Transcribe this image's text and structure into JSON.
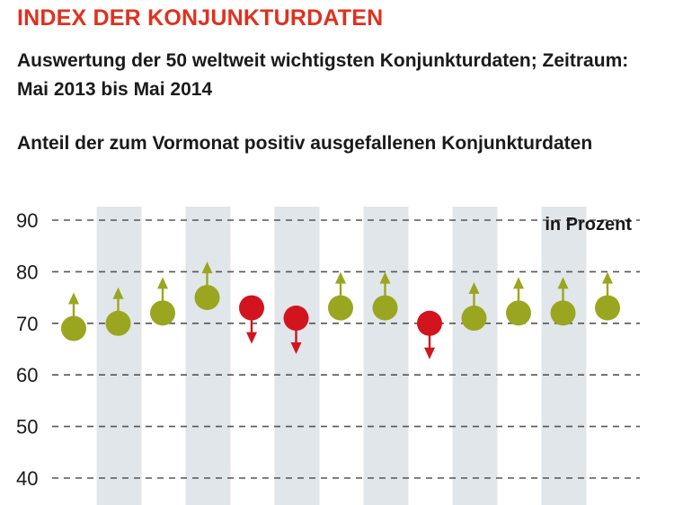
{
  "header": {
    "title": "INDEX DER KONJUNKTURDATEN",
    "subtitle": "Auswertung der 50 weltweit wichtigsten Konjunkturdaten; Zeitraum: Mai 2013 bis Mai 2014"
  },
  "chart_caption": "Anteil der zum Vormonat positiv ausgefallenen Konjunkturdaten",
  "colors": {
    "title": "#e0301e",
    "positive": "#9aa61f",
    "negative": "#d2141e",
    "band": "#e1e6ea",
    "grid": "#555555"
  },
  "chart_data": {
    "type": "scatter",
    "unit_label": "in Prozent",
    "ylim": [
      40,
      90
    ],
    "yticks": [
      90,
      80,
      70,
      60,
      50,
      40
    ],
    "grid": true,
    "alternating_bands": true,
    "values": [
      69,
      70,
      72,
      75,
      73,
      71,
      73,
      73,
      70,
      71,
      72,
      72,
      73
    ],
    "direction": [
      "up",
      "up",
      "up",
      "up",
      "down",
      "down",
      "up",
      "up",
      "down",
      "up",
      "up",
      "up",
      "up"
    ]
  }
}
